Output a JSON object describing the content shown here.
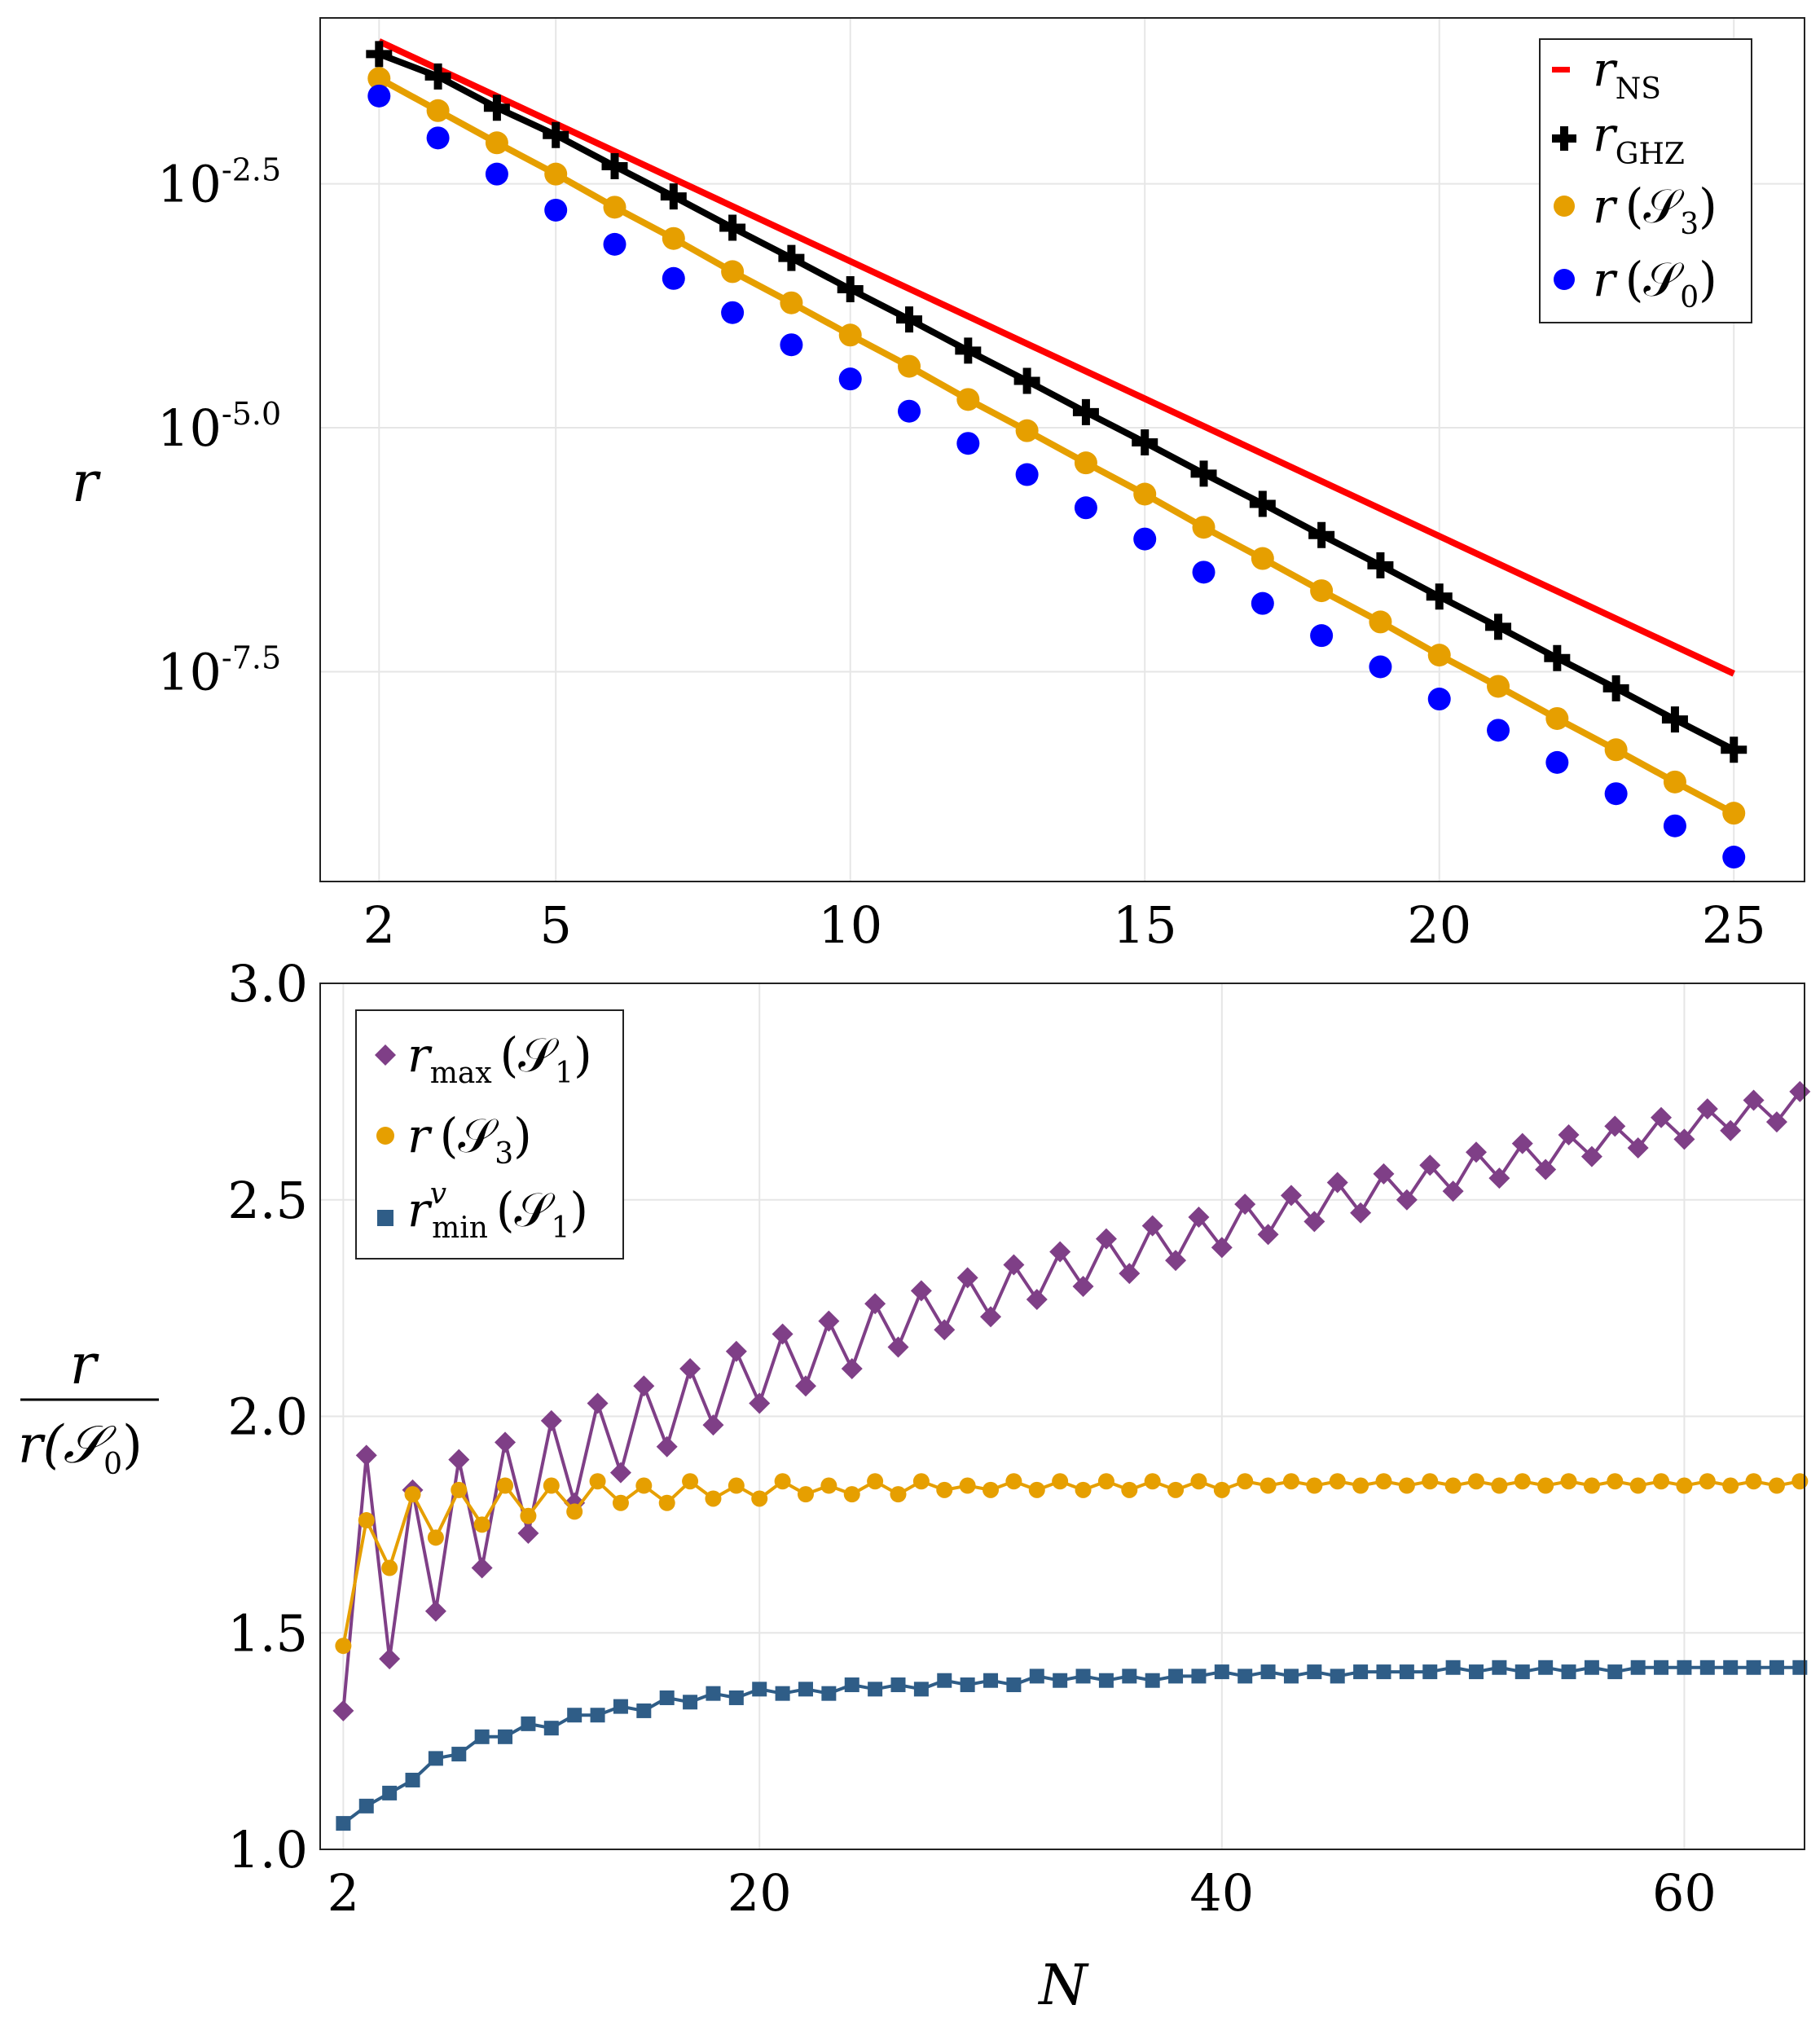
{
  "chart_data": [
    {
      "type": "line",
      "panel": "top",
      "title": "",
      "xlabel": "",
      "ylabel": "r",
      "yscale": "log10",
      "xlim": [
        1.0,
        26.2
      ],
      "ylim": [
        -9.65,
        -0.8
      ],
      "xticks": [
        2,
        5,
        10,
        15,
        20,
        25
      ],
      "yticks": [
        {
          "value": -2.5,
          "base": "10",
          "exp": "-2.5"
        },
        {
          "value": -5.0,
          "base": "10",
          "exp": "-5.0"
        },
        {
          "value": -7.5,
          "base": "10",
          "exp": "-7.5"
        }
      ],
      "legend": {
        "placement": "top-right",
        "entries": [
          {
            "key": "ns",
            "main": "r",
            "sub": "NS",
            "arg": ""
          },
          {
            "key": "ghz",
            "main": "r",
            "sub": "GHZ",
            "arg": ""
          },
          {
            "key": "s3",
            "main": "r",
            "sub": "",
            "arg": "(𝒮",
            "argsub": "3",
            "close": ")"
          },
          {
            "key": "s0",
            "main": "r",
            "sub": "",
            "arg": "(𝒮",
            "argsub": "0",
            "close": ")"
          }
        ]
      },
      "series": [
        {
          "key": "ns",
          "name": "r_NS",
          "color": "#ff0000",
          "style": "line",
          "x": [
            2,
            25
          ],
          "log10_values": [
            -1.04,
            -7.52
          ]
        },
        {
          "key": "ghz",
          "name": "r_GHZ",
          "color": "#000000",
          "style": "line+cross",
          "x": [
            2,
            3,
            4,
            5,
            6,
            7,
            8,
            9,
            10,
            11,
            12,
            13,
            14,
            15,
            16,
            17,
            18,
            19,
            20,
            21,
            22,
            23,
            24,
            25
          ],
          "log10_values": [
            -1.17,
            -1.4,
            -1.72,
            -2.0,
            -2.32,
            -2.63,
            -2.95,
            -3.26,
            -3.58,
            -3.89,
            -4.21,
            -4.52,
            -4.84,
            -5.15,
            -5.47,
            -5.78,
            -6.1,
            -6.41,
            -6.73,
            -7.04,
            -7.36,
            -7.67,
            -7.99,
            -8.3
          ]
        },
        {
          "key": "s3",
          "name": "r(S3)",
          "color": "#e69f00",
          "style": "line+circle",
          "x": [
            2,
            3,
            4,
            5,
            6,
            7,
            8,
            9,
            10,
            11,
            12,
            13,
            14,
            15,
            16,
            17,
            18,
            19,
            20,
            21,
            22,
            23,
            24,
            25
          ],
          "log10_values": [
            -1.42,
            -1.75,
            -2.08,
            -2.4,
            -2.74,
            -3.06,
            -3.4,
            -3.72,
            -4.05,
            -4.37,
            -4.71,
            -5.03,
            -5.36,
            -5.68,
            -6.02,
            -6.34,
            -6.67,
            -6.99,
            -7.33,
            -7.65,
            -7.98,
            -8.3,
            -8.63,
            -8.95
          ]
        },
        {
          "key": "s0",
          "name": "r(S0)",
          "color": "#0000ff",
          "style": "circle",
          "x": [
            2,
            3,
            4,
            5,
            6,
            7,
            8,
            9,
            10,
            11,
            12,
            13,
            14,
            15,
            16,
            17,
            18,
            19,
            20,
            21,
            22,
            23,
            24,
            25
          ],
          "log10_values": [
            -1.6,
            -2.03,
            -2.4,
            -2.77,
            -3.12,
            -3.47,
            -3.82,
            -4.15,
            -4.5,
            -4.83,
            -5.16,
            -5.48,
            -5.82,
            -6.14,
            -6.48,
            -6.8,
            -7.13,
            -7.45,
            -7.78,
            -8.1,
            -8.43,
            -8.75,
            -9.08,
            -9.4
          ]
        }
      ]
    },
    {
      "type": "line",
      "panel": "bottom",
      "title": "",
      "xlabel": "N",
      "ylabel": "r / r(S0)",
      "ylabel_num": "r",
      "ylabel_den": "r(𝒮",
      "ylabel_den_sub": "0",
      "ylabel_den_close": ")",
      "xlim": [
        1.0,
        65.2
      ],
      "ylim": [
        1.0,
        3.0
      ],
      "xticks": [
        2,
        20,
        40,
        60
      ],
      "yticks": [
        "1.0",
        "1.5",
        "2.0",
        "2.5",
        "3.0"
      ],
      "reference_line": {
        "y": 1.0,
        "style": "dashed",
        "color": "#999999"
      },
      "legend": {
        "placement": "top-left",
        "entries": [
          {
            "key": "rmax",
            "main": "r",
            "sub": "max",
            "sup": "",
            "arg": "(𝒮",
            "argsub": "1",
            "close": ")"
          },
          {
            "key": "s3",
            "main": "r",
            "sub": "",
            "sup": "",
            "arg": "(𝒮",
            "argsub": "3",
            "close": ")"
          },
          {
            "key": "rmin",
            "main": "r",
            "sub": "min",
            "sup": "v",
            "arg": "(𝒮",
            "argsub": "1",
            "close": ")"
          }
        ]
      },
      "series": [
        {
          "key": "rmax",
          "name": "r_max(S1)",
          "color": "#7f3f87",
          "marker": "diamond",
          "x": [
            2,
            3,
            4,
            5,
            6,
            7,
            8,
            9,
            10,
            11,
            12,
            13,
            14,
            15,
            16,
            17,
            18,
            19,
            20,
            21,
            22,
            23,
            24,
            25,
            26,
            27,
            28,
            29,
            30,
            31,
            32,
            33,
            34,
            35,
            36,
            37,
            38,
            39,
            40,
            41,
            42,
            43,
            44,
            45,
            46,
            47,
            48,
            49,
            50,
            51,
            52,
            53,
            54,
            55,
            56,
            57,
            58,
            59,
            60,
            61,
            62,
            63,
            64,
            65
          ],
          "values": [
            1.32,
            1.91,
            1.44,
            1.83,
            1.55,
            1.9,
            1.65,
            1.94,
            1.73,
            1.99,
            1.8,
            2.03,
            1.87,
            2.07,
            1.93,
            2.11,
            1.98,
            2.15,
            2.03,
            2.19,
            2.07,
            2.22,
            2.11,
            2.26,
            2.16,
            2.29,
            2.2,
            2.32,
            2.23,
            2.35,
            2.27,
            2.38,
            2.3,
            2.41,
            2.33,
            2.44,
            2.36,
            2.46,
            2.39,
            2.49,
            2.42,
            2.51,
            2.45,
            2.54,
            2.47,
            2.56,
            2.5,
            2.58,
            2.52,
            2.61,
            2.55,
            2.63,
            2.57,
            2.65,
            2.6,
            2.67,
            2.62,
            2.69,
            2.64,
            2.71,
            2.66,
            2.73,
            2.68,
            2.75
          ]
        },
        {
          "key": "s3",
          "name": "r(S3)",
          "color": "#e69f00",
          "marker": "circle",
          "x": [
            2,
            3,
            4,
            5,
            6,
            7,
            8,
            9,
            10,
            11,
            12,
            13,
            14,
            15,
            16,
            17,
            18,
            19,
            20,
            21,
            22,
            23,
            24,
            25,
            26,
            27,
            28,
            29,
            30,
            31,
            32,
            33,
            34,
            35,
            36,
            37,
            38,
            39,
            40,
            41,
            42,
            43,
            44,
            45,
            46,
            47,
            48,
            49,
            50,
            51,
            52,
            53,
            54,
            55,
            56,
            57,
            58,
            59,
            60,
            61,
            62,
            63,
            64,
            65
          ],
          "values": [
            1.47,
            1.76,
            1.65,
            1.82,
            1.72,
            1.83,
            1.75,
            1.84,
            1.77,
            1.84,
            1.78,
            1.85,
            1.8,
            1.84,
            1.8,
            1.85,
            1.81,
            1.84,
            1.81,
            1.85,
            1.82,
            1.84,
            1.82,
            1.85,
            1.82,
            1.85,
            1.83,
            1.84,
            1.83,
            1.85,
            1.83,
            1.85,
            1.83,
            1.85,
            1.83,
            1.85,
            1.83,
            1.85,
            1.83,
            1.85,
            1.84,
            1.85,
            1.84,
            1.85,
            1.84,
            1.85,
            1.84,
            1.85,
            1.84,
            1.85,
            1.84,
            1.85,
            1.84,
            1.85,
            1.84,
            1.85,
            1.84,
            1.85,
            1.84,
            1.85,
            1.84,
            1.85,
            1.84,
            1.85
          ]
        },
        {
          "key": "rmin",
          "name": "r^v_min(S1)",
          "color": "#2f5d87",
          "marker": "square",
          "x": [
            2,
            3,
            4,
            5,
            6,
            7,
            8,
            9,
            10,
            11,
            12,
            13,
            14,
            15,
            16,
            17,
            18,
            19,
            20,
            21,
            22,
            23,
            24,
            25,
            26,
            27,
            28,
            29,
            30,
            31,
            32,
            33,
            34,
            35,
            36,
            37,
            38,
            39,
            40,
            41,
            42,
            43,
            44,
            45,
            46,
            47,
            48,
            49,
            50,
            51,
            52,
            53,
            54,
            55,
            56,
            57,
            58,
            59,
            60,
            61,
            62,
            63,
            64,
            65
          ],
          "values": [
            1.06,
            1.1,
            1.13,
            1.16,
            1.21,
            1.22,
            1.26,
            1.26,
            1.29,
            1.28,
            1.31,
            1.31,
            1.33,
            1.32,
            1.35,
            1.34,
            1.36,
            1.35,
            1.37,
            1.36,
            1.37,
            1.36,
            1.38,
            1.37,
            1.38,
            1.37,
            1.39,
            1.38,
            1.39,
            1.38,
            1.4,
            1.39,
            1.4,
            1.39,
            1.4,
            1.39,
            1.4,
            1.4,
            1.41,
            1.4,
            1.41,
            1.4,
            1.41,
            1.4,
            1.41,
            1.41,
            1.41,
            1.41,
            1.42,
            1.41,
            1.42,
            1.41,
            1.42,
            1.41,
            1.42,
            1.41,
            1.42,
            1.42,
            1.42,
            1.42,
            1.42,
            1.42,
            1.42,
            1.42
          ]
        }
      ]
    }
  ]
}
